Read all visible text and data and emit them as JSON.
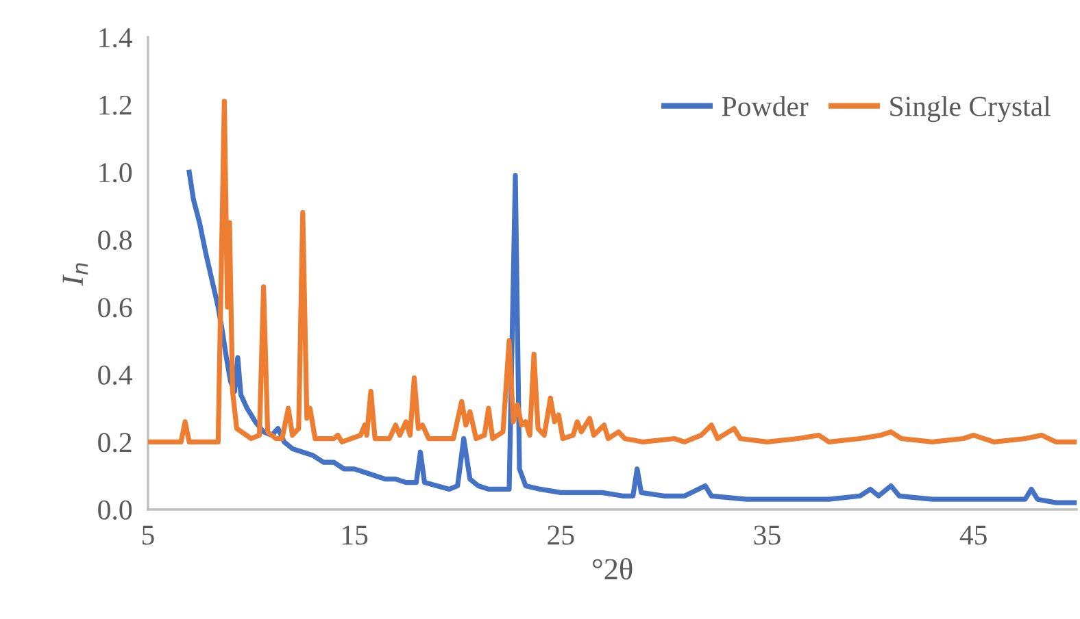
{
  "chart_data": {
    "type": "line",
    "xlabel": "°2θ",
    "ylabel": "I$_{n}$",
    "xlim": [
      5,
      50
    ],
    "xticks": [
      5,
      15,
      25,
      35,
      45
    ],
    "ylim": [
      0,
      1.4
    ],
    "yticks": [
      {
        "value": 0,
        "label": "0.0"
      },
      0.2,
      0.4,
      0.6,
      0.8,
      {
        "value": 1,
        "label": "1.0"
      },
      1.2,
      1.4
    ],
    "grid": false,
    "legend": "top right",
    "marker": "none",
    "line_style": "solid",
    "series": [
      {
        "name": "Powder",
        "color": "#4472c4",
        "x": [
          7.0,
          7.2,
          7.5,
          7.8,
          8.1,
          8.4,
          8.6,
          8.8,
          9.0,
          9.2,
          9.35,
          9.5,
          9.8,
          10.2,
          10.6,
          11.0,
          11.3,
          11.6,
          12.0,
          12.5,
          13,
          13.5,
          14,
          14.5,
          15,
          15.5,
          16,
          16.5,
          17,
          17.5,
          18.0,
          18.2,
          18.4,
          19,
          19.6,
          20.0,
          20.3,
          20.6,
          21,
          21.5,
          22,
          22.5,
          22.8,
          23.0,
          23.3,
          24,
          25,
          26,
          27,
          28,
          28.5,
          28.7,
          28.9,
          30,
          31,
          32,
          32.3,
          34,
          36,
          38,
          39.5,
          40.0,
          40.4,
          41.0,
          41.4,
          43,
          45,
          47.5,
          47.8,
          48.1,
          49,
          50
        ],
        "values": [
          1.0,
          0.92,
          0.85,
          0.76,
          0.68,
          0.6,
          0.53,
          0.45,
          0.38,
          0.35,
          0.45,
          0.34,
          0.3,
          0.26,
          0.23,
          0.22,
          0.24,
          0.2,
          0.18,
          0.17,
          0.16,
          0.14,
          0.14,
          0.12,
          0.12,
          0.11,
          0.1,
          0.09,
          0.09,
          0.08,
          0.08,
          0.17,
          0.08,
          0.07,
          0.06,
          0.07,
          0.21,
          0.09,
          0.07,
          0.06,
          0.06,
          0.06,
          0.99,
          0.12,
          0.07,
          0.06,
          0.05,
          0.05,
          0.05,
          0.04,
          0.04,
          0.12,
          0.05,
          0.04,
          0.04,
          0.07,
          0.04,
          0.03,
          0.03,
          0.03,
          0.04,
          0.06,
          0.04,
          0.07,
          0.04,
          0.03,
          0.03,
          0.03,
          0.06,
          0.03,
          0.02,
          0.02
        ]
      },
      {
        "name": "Single Crystal",
        "color": "#ed7d31",
        "x": [
          5,
          6.6,
          6.8,
          7.0,
          8.4,
          8.7,
          8.85,
          8.95,
          9.1,
          9.3,
          10.0,
          10.4,
          10.6,
          10.8,
          11.2,
          11.5,
          11.8,
          12.0,
          12.3,
          12.5,
          12.7,
          12.85,
          13.1,
          14.0,
          14.2,
          14.4,
          15.3,
          15.5,
          15.6,
          15.8,
          16.0,
          16.7,
          17.0,
          17.2,
          17.5,
          17.7,
          17.9,
          18.1,
          18.3,
          18.6,
          19.8,
          20.2,
          20.4,
          20.6,
          20.9,
          21.3,
          21.5,
          21.7,
          22.2,
          22.5,
          22.7,
          22.9,
          23.1,
          23.3,
          23.5,
          23.7,
          23.9,
          24.2,
          24.5,
          24.7,
          24.9,
          25.1,
          25.6,
          25.8,
          26.0,
          26.4,
          26.6,
          27.1,
          27.3,
          27.8,
          28.1,
          29,
          30.5,
          31,
          31.8,
          32.3,
          32.6,
          33.4,
          33.7,
          35,
          36.5,
          37.5,
          38,
          39.5,
          40.5,
          41,
          41.5,
          43,
          44.5,
          45,
          46,
          47.5,
          48.3,
          49,
          50
        ],
        "values": [
          0.2,
          0.2,
          0.26,
          0.2,
          0.2,
          1.21,
          0.6,
          0.85,
          0.35,
          0.24,
          0.21,
          0.22,
          0.66,
          0.23,
          0.21,
          0.21,
          0.3,
          0.22,
          0.24,
          0.88,
          0.27,
          0.3,
          0.21,
          0.21,
          0.22,
          0.2,
          0.22,
          0.25,
          0.22,
          0.35,
          0.21,
          0.21,
          0.25,
          0.22,
          0.26,
          0.22,
          0.39,
          0.24,
          0.25,
          0.21,
          0.21,
          0.32,
          0.25,
          0.29,
          0.21,
          0.22,
          0.3,
          0.21,
          0.23,
          0.5,
          0.26,
          0.31,
          0.25,
          0.26,
          0.22,
          0.46,
          0.24,
          0.22,
          0.33,
          0.26,
          0.28,
          0.21,
          0.22,
          0.26,
          0.23,
          0.27,
          0.22,
          0.25,
          0.21,
          0.23,
          0.21,
          0.2,
          0.21,
          0.2,
          0.22,
          0.25,
          0.21,
          0.24,
          0.21,
          0.2,
          0.21,
          0.22,
          0.2,
          0.21,
          0.22,
          0.23,
          0.21,
          0.2,
          0.21,
          0.22,
          0.2,
          0.21,
          0.22,
          0.2,
          0.2
        ]
      }
    ]
  }
}
